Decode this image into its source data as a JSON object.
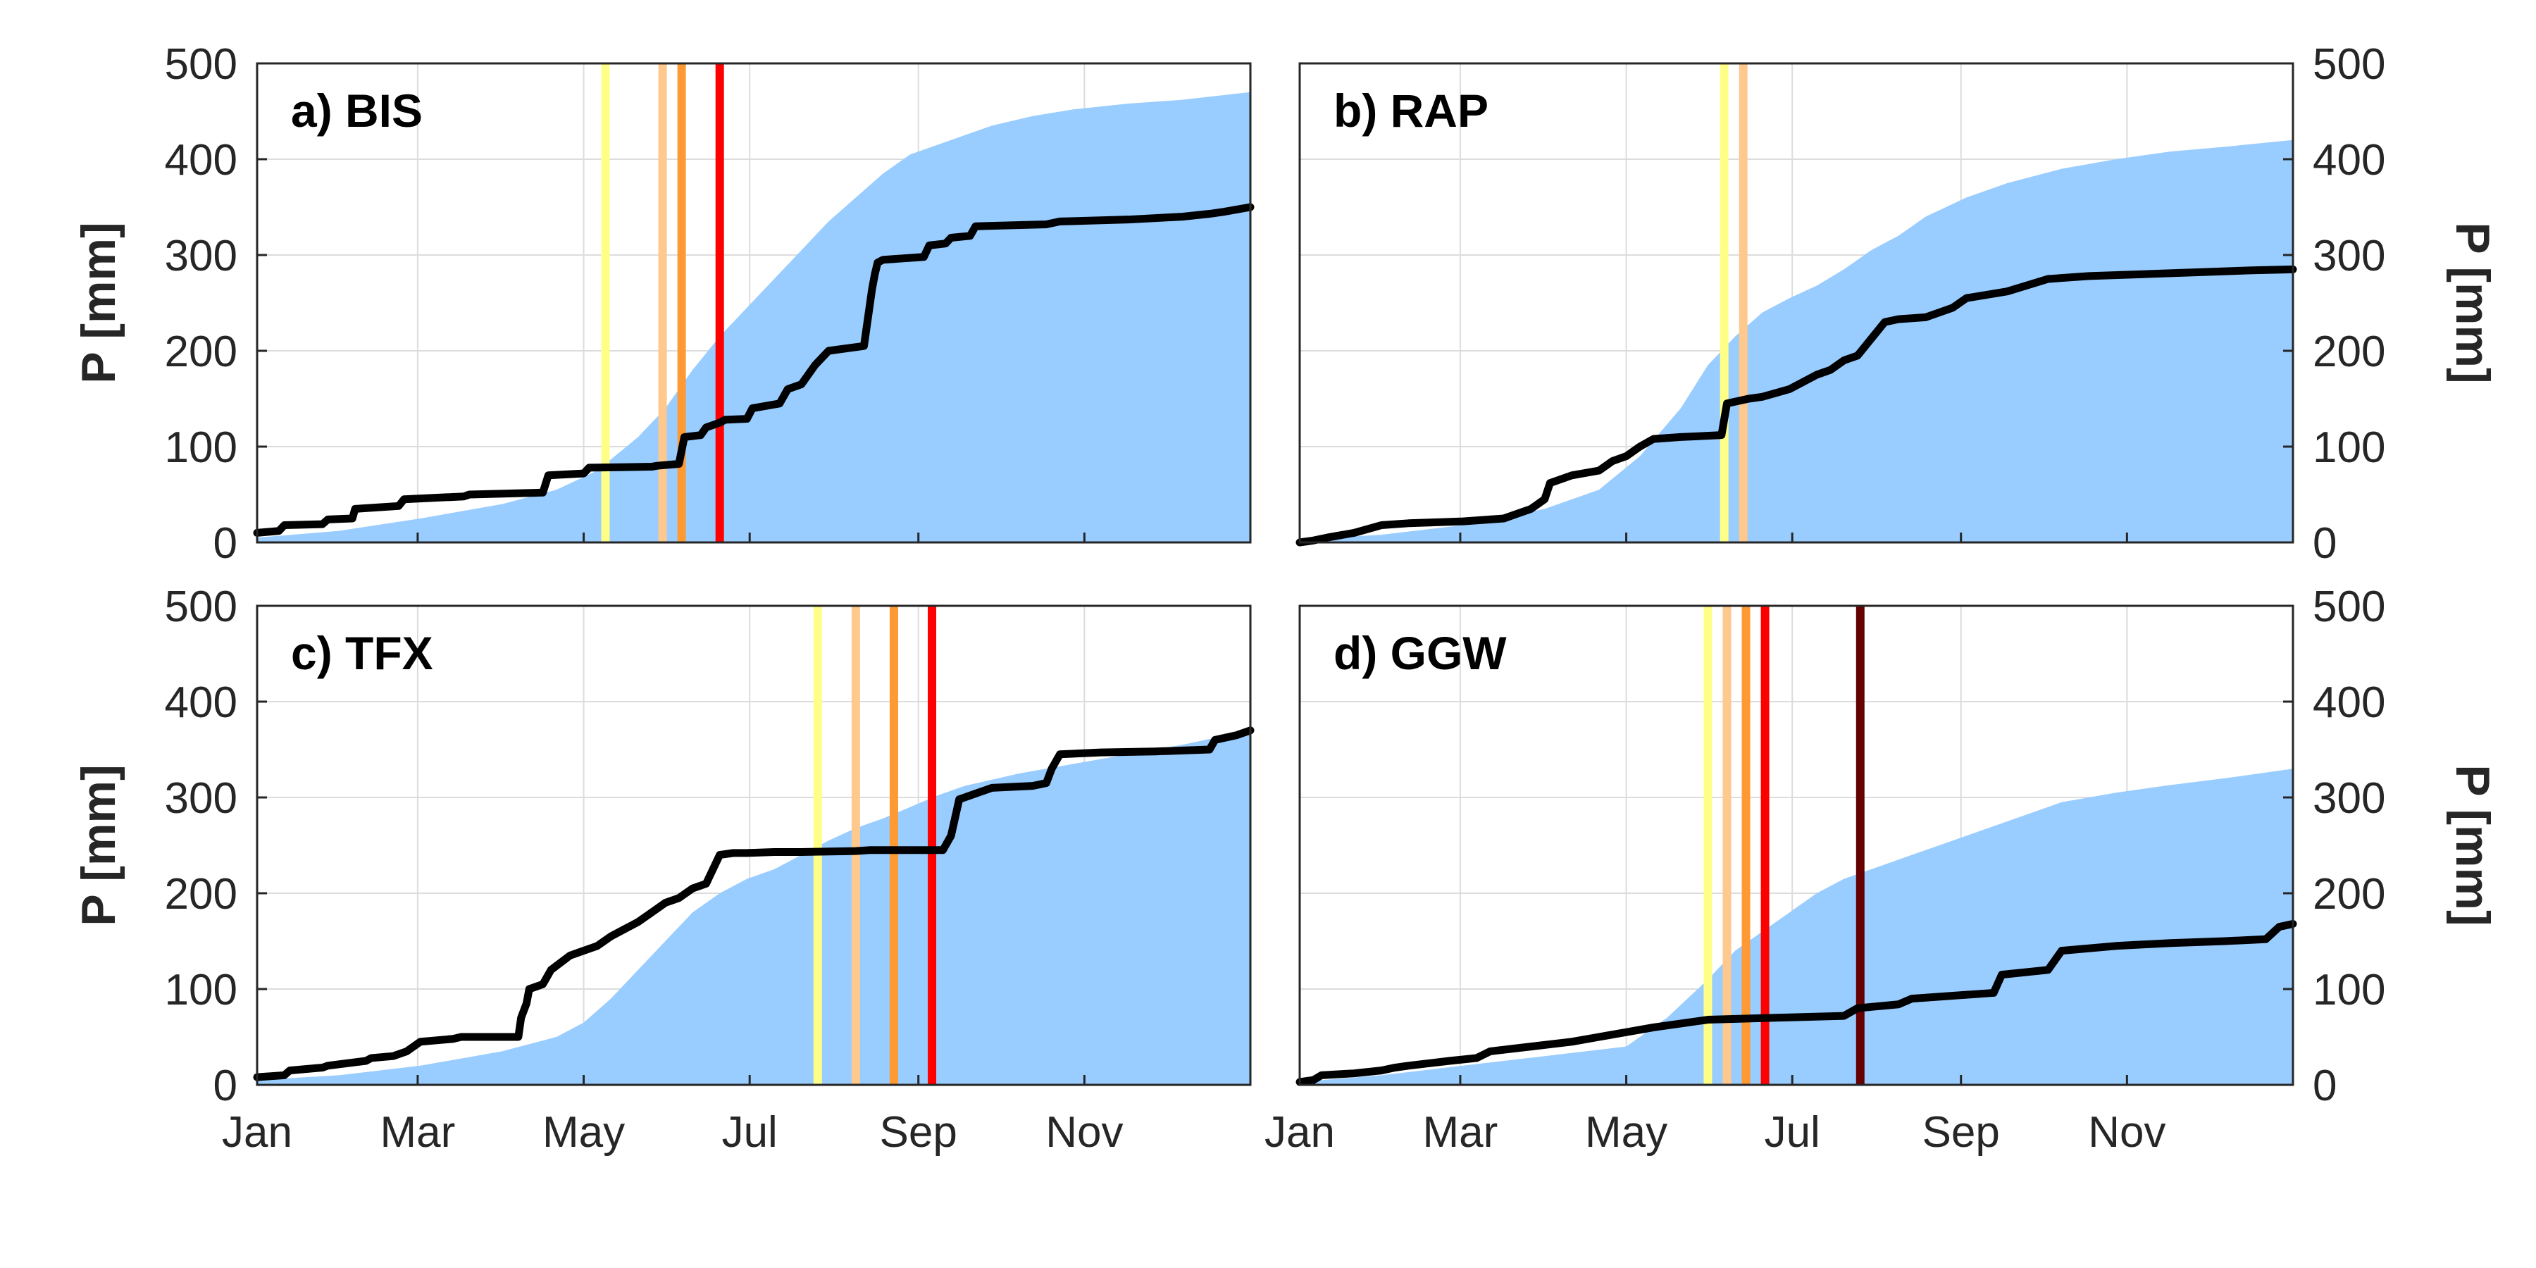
{
  "colors": {
    "climatology_fill": "#99ccff",
    "observed_line": "#000000",
    "markers": [
      "#ffff88",
      "#ffc88c",
      "#ff9933",
      "#ff0000",
      "#660000"
    ]
  },
  "chart_data": [
    {
      "type": "area",
      "title": "a) BIS",
      "ylabel": "P [mm]",
      "ylabel_side": "left",
      "xlim": [
        0,
        365
      ],
      "ylim": [
        0,
        500
      ],
      "xticks": [
        {
          "label": "Jan",
          "day": 0
        },
        {
          "label": "Mar",
          "day": 59
        },
        {
          "label": "May",
          "day": 120
        },
        {
          "label": "Jul",
          "day": 181
        },
        {
          "label": "Sep",
          "day": 243
        },
        {
          "label": "Nov",
          "day": 304
        }
      ],
      "yticks": [
        0,
        100,
        200,
        300,
        400,
        500
      ],
      "grid": true,
      "series": [
        {
          "kind": "area",
          "x": [
            0,
            30,
            60,
            90,
            110,
            125,
            140,
            150,
            160,
            170,
            180,
            190,
            200,
            210,
            220,
            230,
            240,
            250,
            260,
            270,
            285,
            300,
            320,
            340,
            365
          ],
          "values": [
            5,
            12,
            25,
            40,
            55,
            75,
            110,
            140,
            180,
            215,
            245,
            275,
            305,
            335,
            360,
            385,
            405,
            415,
            425,
            435,
            445,
            452,
            458,
            462,
            470
          ]
        },
        {
          "kind": "line",
          "x": [
            0,
            8,
            10,
            24,
            26,
            35,
            36,
            52,
            54,
            76,
            78,
            105,
            107,
            120,
            122,
            145,
            147,
            155,
            157,
            163,
            165,
            170,
            172,
            180,
            182,
            192,
            195,
            200,
            205,
            210,
            223,
            226,
            227,
            228,
            230,
            245,
            247,
            253,
            255,
            262,
            264,
            290,
            295,
            320,
            340,
            350,
            355,
            365
          ],
          "values": [
            10,
            12,
            18,
            19,
            24,
            25,
            35,
            38,
            45,
            48,
            50,
            52,
            70,
            72,
            78,
            79,
            80,
            82,
            110,
            112,
            120,
            125,
            128,
            129,
            140,
            145,
            160,
            165,
            185,
            200,
            205,
            265,
            280,
            292,
            295,
            298,
            310,
            312,
            318,
            320,
            330,
            332,
            335,
            337,
            340,
            343,
            345,
            350
          ]
        }
      ],
      "markers": [
        {
          "day": 128,
          "color": "#ffff88"
        },
        {
          "day": 149,
          "color": "#ffc88c"
        },
        {
          "day": 156,
          "color": "#ff9933"
        },
        {
          "day": 170,
          "color": "#ff0000"
        }
      ]
    },
    {
      "type": "area",
      "title": "b) RAP",
      "ylabel": "P [mm]",
      "ylabel_side": "right",
      "xlim": [
        0,
        365
      ],
      "ylim": [
        0,
        500
      ],
      "xticks": [
        {
          "label": "Jan",
          "day": 0
        },
        {
          "label": "Mar",
          "day": 59
        },
        {
          "label": "May",
          "day": 120
        },
        {
          "label": "Jul",
          "day": 181
        },
        {
          "label": "Sep",
          "day": 243
        },
        {
          "label": "Nov",
          "day": 304
        }
      ],
      "yticks": [
        0,
        100,
        200,
        300,
        400,
        500
      ],
      "grid": true,
      "series": [
        {
          "kind": "area",
          "x": [
            0,
            30,
            60,
            90,
            110,
            125,
            140,
            150,
            160,
            170,
            180,
            190,
            200,
            210,
            220,
            230,
            245,
            260,
            280,
            300,
            320,
            340,
            365
          ],
          "values": [
            3,
            8,
            18,
            35,
            55,
            90,
            140,
            185,
            215,
            240,
            255,
            268,
            285,
            305,
            320,
            340,
            360,
            375,
            390,
            400,
            408,
            413,
            420
          ]
        },
        {
          "kind": "line",
          "x": [
            0,
            5,
            10,
            20,
            30,
            40,
            50,
            60,
            75,
            85,
            90,
            92,
            100,
            110,
            115,
            120,
            125,
            130,
            140,
            155,
            157,
            165,
            170,
            180,
            190,
            195,
            200,
            205,
            215,
            220,
            230,
            240,
            245,
            260,
            275,
            290,
            310,
            330,
            350,
            365
          ],
          "values": [
            0,
            2,
            5,
            10,
            18,
            20,
            21,
            22,
            25,
            35,
            45,
            62,
            70,
            75,
            85,
            90,
            100,
            108,
            110,
            112,
            145,
            150,
            152,
            160,
            175,
            180,
            190,
            195,
            230,
            233,
            235,
            245,
            255,
            262,
            275,
            278,
            280,
            282,
            284,
            285
          ]
        }
      ],
      "markers": [
        {
          "day": 156,
          "color": "#ffff88"
        },
        {
          "day": 163,
          "color": "#ffc88c"
        }
      ]
    },
    {
      "type": "area",
      "title": "c) TFX",
      "ylabel": "P [mm]",
      "ylabel_side": "left",
      "xlim": [
        0,
        365
      ],
      "ylim": [
        0,
        500
      ],
      "xticks": [
        {
          "label": "Jan",
          "day": 0
        },
        {
          "label": "Mar",
          "day": 59
        },
        {
          "label": "May",
          "day": 120
        },
        {
          "label": "Jul",
          "day": 181
        },
        {
          "label": "Sep",
          "day": 243
        },
        {
          "label": "Nov",
          "day": 304
        }
      ],
      "yticks": [
        0,
        100,
        200,
        300,
        400,
        500
      ],
      "grid": true,
      "series": [
        {
          "kind": "area",
          "x": [
            0,
            30,
            60,
            90,
            110,
            120,
            130,
            140,
            150,
            160,
            170,
            180,
            190,
            200,
            210,
            220,
            230,
            240,
            250,
            260,
            280,
            300,
            320,
            340,
            365
          ],
          "values": [
            5,
            10,
            20,
            35,
            50,
            65,
            90,
            120,
            150,
            180,
            200,
            215,
            225,
            240,
            255,
            268,
            278,
            290,
            302,
            312,
            325,
            335,
            345,
            355,
            370
          ]
        },
        {
          "kind": "line",
          "x": [
            0,
            10,
            12,
            24,
            26,
            40,
            42,
            50,
            55,
            60,
            72,
            75,
            96,
            97,
            99,
            100,
            105,
            108,
            115,
            120,
            125,
            130,
            140,
            145,
            150,
            155,
            160,
            165,
            170,
            175,
            180,
            190,
            200,
            220,
            225,
            230,
            240,
            252,
            255,
            258,
            265,
            270,
            285,
            290,
            292,
            295,
            310,
            330,
            350,
            352,
            360,
            365
          ],
          "values": [
            8,
            10,
            15,
            18,
            20,
            25,
            28,
            30,
            35,
            45,
            48,
            50,
            50,
            70,
            85,
            100,
            105,
            120,
            135,
            140,
            145,
            155,
            170,
            180,
            190,
            195,
            205,
            210,
            240,
            242,
            242,
            243,
            243,
            244,
            245,
            245,
            245,
            245,
            260,
            298,
            305,
            310,
            312,
            315,
            330,
            345,
            347,
            348,
            350,
            360,
            365,
            370
          ]
        }
      ],
      "markers": [
        {
          "day": 206,
          "color": "#ffff88"
        },
        {
          "day": 220,
          "color": "#ffc88c"
        },
        {
          "day": 234,
          "color": "#ff9933"
        },
        {
          "day": 248,
          "color": "#ff0000"
        }
      ]
    },
    {
      "type": "area",
      "title": "d) GGW",
      "ylabel": "P [mm]",
      "ylabel_side": "right",
      "xlim": [
        0,
        365
      ],
      "ylim": [
        0,
        500
      ],
      "xticks": [
        {
          "label": "Jan",
          "day": 0
        },
        {
          "label": "Mar",
          "day": 59
        },
        {
          "label": "May",
          "day": 120
        },
        {
          "label": "Jul",
          "day": 181
        },
        {
          "label": "Sep",
          "day": 243
        },
        {
          "label": "Nov",
          "day": 304
        }
      ],
      "yticks": [
        0,
        100,
        200,
        300,
        400,
        500
      ],
      "grid": true,
      "series": [
        {
          "kind": "area",
          "x": [
            0,
            30,
            60,
            90,
            120,
            135,
            150,
            160,
            170,
            180,
            190,
            200,
            210,
            220,
            230,
            240,
            250,
            260,
            270,
            280,
            300,
            320,
            340,
            365
          ],
          "values": [
            3,
            10,
            20,
            30,
            40,
            70,
            110,
            140,
            160,
            180,
            200,
            215,
            225,
            235,
            245,
            255,
            265,
            275,
            285,
            295,
            305,
            313,
            320,
            330
          ]
        },
        {
          "kind": "line",
          "x": [
            0,
            5,
            8,
            20,
            30,
            35,
            40,
            55,
            65,
            70,
            85,
            100,
            110,
            130,
            150,
            175,
            200,
            205,
            220,
            225,
            250,
            255,
            258,
            275,
            280,
            300,
            320,
            340,
            355,
            360,
            365
          ],
          "values": [
            3,
            5,
            10,
            12,
            15,
            18,
            20,
            25,
            28,
            35,
            40,
            45,
            50,
            60,
            68,
            70,
            72,
            80,
            84,
            90,
            95,
            96,
            115,
            120,
            140,
            145,
            148,
            150,
            152,
            165,
            168
          ]
        }
      ],
      "markers": [
        {
          "day": 150,
          "color": "#ffff88"
        },
        {
          "day": 157,
          "color": "#ffc88c"
        },
        {
          "day": 164,
          "color": "#ff9933"
        },
        {
          "day": 171,
          "color": "#ff0000"
        },
        {
          "day": 206,
          "color": "#660000"
        }
      ]
    }
  ]
}
